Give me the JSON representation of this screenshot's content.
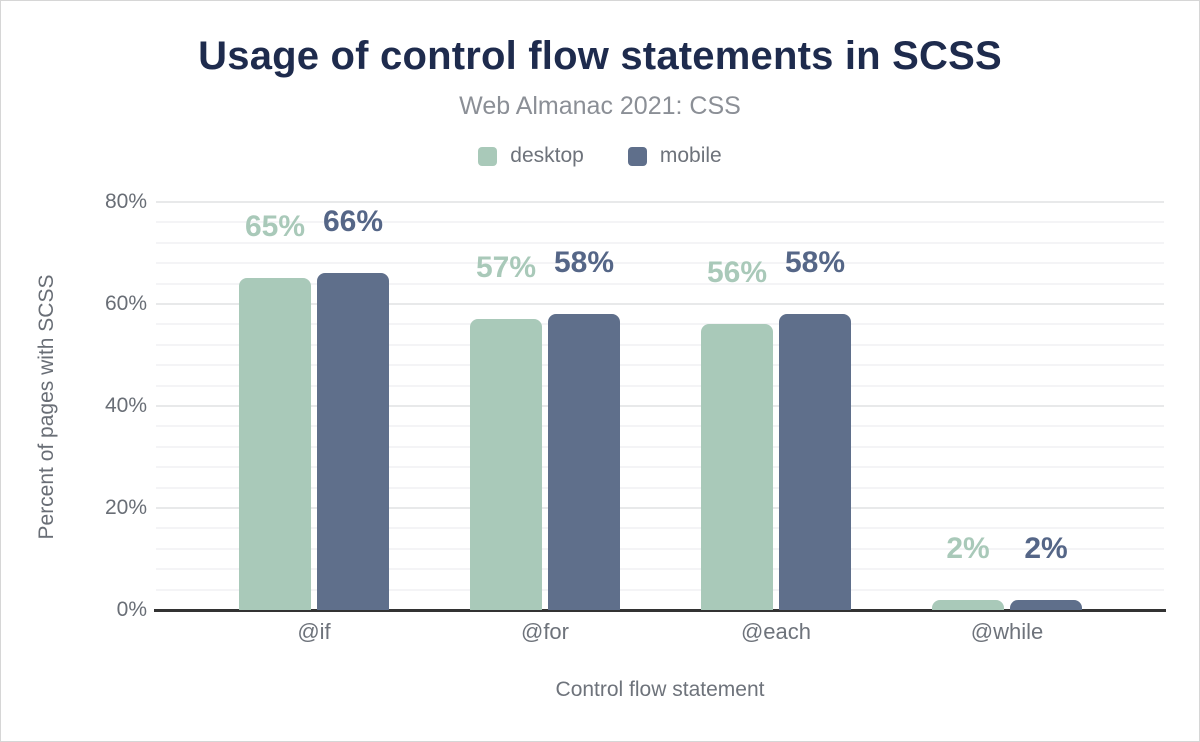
{
  "chart": {
    "title": "Usage of control flow statements in SCSS",
    "subtitle": "Web Almanac 2021: CSS"
  },
  "chart_data": {
    "type": "bar",
    "categories": [
      "@if",
      "@for",
      "@each",
      "@while"
    ],
    "series": [
      {
        "name": "desktop",
        "color": "#a9c9b9",
        "label_color": "#a9c9b9",
        "values": [
          65,
          57,
          56,
          2
        ]
      },
      {
        "name": "mobile",
        "color": "#5f6f8b",
        "label_color": "#556687",
        "values": [
          66,
          58,
          58,
          2
        ]
      }
    ],
    "value_suffix": "%",
    "xlabel": "Control flow statement",
    "ylabel": "Percent of pages with SCSS",
    "ylim": [
      0,
      80
    ],
    "yticks": [
      0,
      20,
      40,
      60,
      80
    ],
    "minor_grid_step": 4,
    "grid": true,
    "legend_position": "top"
  },
  "colors": {
    "title": "#1e2b4d",
    "subtitle": "#8b8f96",
    "legend_text": "#6e737b",
    "axis_text": "#696e76",
    "major_grid": "#e8e9ea",
    "minor_grid": "#f4f4f6",
    "axis_line": "#333333",
    "background": "#ffffff"
  }
}
